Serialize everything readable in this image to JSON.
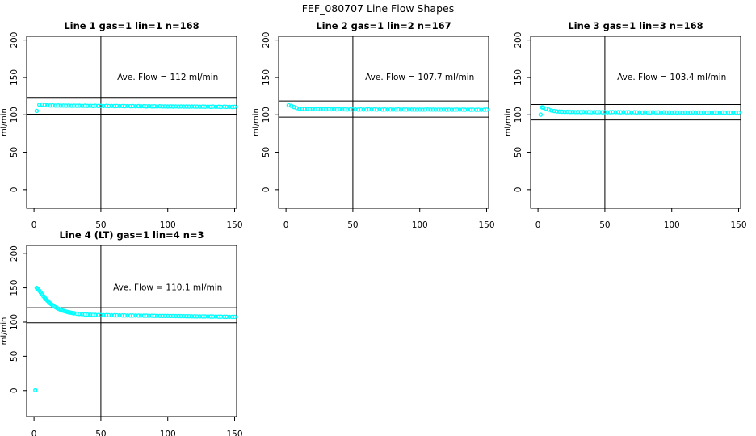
{
  "page_title": "FEF_080707  Line Flow Shapes",
  "colors": {
    "points": "#00FFFF",
    "axis": "#000000",
    "background": "#FFFFFF",
    "text": "#000000"
  },
  "axis_shared": {
    "x_ticks": [
      0,
      50,
      100,
      150
    ],
    "y_ticks": [
      0,
      50,
      100,
      150,
      200
    ],
    "ylabel": "ml/min",
    "xlim": [
      -5.5,
      151.5
    ],
    "grid": false
  },
  "marker": {
    "shape": "open-circle",
    "color": "#00FFFF"
  },
  "chart_data": [
    {
      "type": "scatter",
      "title": "Line 1 gas=1 lin=1 n=168",
      "annotation": "Ave. Flow =  112  ml/min",
      "ave_flow": 112,
      "annotation_at": [
        100,
        150
      ],
      "ref_lines_h": [
        100.8,
        123.2
      ],
      "ref_line_v": 50,
      "ylim": [
        -25,
        205
      ],
      "points": [
        [
          2,
          105.2
        ],
        [
          4,
          113.4
        ],
        [
          6,
          113.8
        ],
        [
          8,
          113.2
        ],
        [
          10,
          112.8
        ],
        [
          12,
          112.5
        ],
        [
          14,
          112.6
        ],
        [
          16,
          112.3
        ],
        [
          18,
          112.5
        ],
        [
          20,
          112.2
        ],
        [
          22,
          112.4
        ],
        [
          24,
          112.1
        ],
        [
          26,
          112.3
        ],
        [
          28,
          112.0
        ],
        [
          30,
          112.2
        ],
        [
          32,
          112.0
        ],
        [
          34,
          112.1
        ],
        [
          36,
          111.9
        ],
        [
          38,
          112.1
        ],
        [
          40,
          111.9
        ],
        [
          42,
          112.0
        ],
        [
          44,
          111.8
        ],
        [
          46,
          112.0
        ],
        [
          48,
          111.8
        ],
        [
          50,
          111.9
        ],
        [
          52,
          111.7
        ],
        [
          54,
          111.9
        ],
        [
          56,
          111.7
        ],
        [
          58,
          111.8
        ],
        [
          60,
          111.6
        ],
        [
          62,
          111.8
        ],
        [
          64,
          111.6
        ],
        [
          66,
          111.7
        ],
        [
          68,
          111.5
        ],
        [
          70,
          111.7
        ],
        [
          72,
          111.5
        ],
        [
          74,
          111.6
        ],
        [
          76,
          111.4
        ],
        [
          78,
          111.6
        ],
        [
          80,
          111.4
        ],
        [
          82,
          111.5
        ],
        [
          84,
          111.3
        ],
        [
          86,
          111.5
        ],
        [
          88,
          111.3
        ],
        [
          90,
          111.4
        ],
        [
          92,
          111.2
        ],
        [
          94,
          111.4
        ],
        [
          96,
          111.2
        ],
        [
          98,
          111.3
        ],
        [
          100,
          111.1
        ],
        [
          102,
          111.3
        ],
        [
          104,
          111.1
        ],
        [
          106,
          111.2
        ],
        [
          108,
          111.0
        ],
        [
          110,
          111.2
        ],
        [
          112,
          111.0
        ],
        [
          114,
          111.1
        ],
        [
          116,
          110.9
        ],
        [
          118,
          111.1
        ],
        [
          120,
          110.9
        ],
        [
          122,
          111.0
        ],
        [
          124,
          110.8
        ],
        [
          126,
          111.0
        ],
        [
          128,
          110.8
        ],
        [
          130,
          110.9
        ],
        [
          132,
          110.7
        ],
        [
          134,
          110.9
        ],
        [
          136,
          110.7
        ],
        [
          138,
          110.8
        ],
        [
          140,
          110.6
        ],
        [
          142,
          110.8
        ],
        [
          144,
          110.6
        ],
        [
          146,
          110.7
        ],
        [
          148,
          110.5
        ],
        [
          150,
          110.7
        ]
      ]
    },
    {
      "type": "scatter",
      "title": "Line 2 gas=1 lin=2 n=167",
      "annotation": "Ave. Flow =  107.7  ml/min",
      "ave_flow": 107.7,
      "annotation_at": [
        100,
        150
      ],
      "ref_lines_h": [
        96.9,
        118.5
      ],
      "ref_line_v": 50,
      "ylim": [
        -25,
        205
      ],
      "points": [
        [
          2,
          112.8
        ],
        [
          4,
          112.0
        ],
        [
          6,
          110.3
        ],
        [
          8,
          109.0
        ],
        [
          10,
          108.2
        ],
        [
          12,
          107.9
        ],
        [
          14,
          107.7
        ],
        [
          16,
          107.8
        ],
        [
          18,
          107.5
        ],
        [
          20,
          107.7
        ],
        [
          22,
          107.4
        ],
        [
          24,
          107.6
        ],
        [
          26,
          107.4
        ],
        [
          28,
          107.5
        ],
        [
          30,
          107.3
        ],
        [
          32,
          107.5
        ],
        [
          34,
          107.3
        ],
        [
          36,
          107.4
        ],
        [
          38,
          107.2
        ],
        [
          40,
          107.4
        ],
        [
          42,
          107.2
        ],
        [
          44,
          107.3
        ],
        [
          46,
          107.1
        ],
        [
          48,
          107.3
        ],
        [
          50,
          107.1
        ],
        [
          52,
          107.2
        ],
        [
          54,
          107.0
        ],
        [
          56,
          107.2
        ],
        [
          58,
          107.0
        ],
        [
          60,
          107.1
        ],
        [
          62,
          107.3
        ],
        [
          64,
          107.1
        ],
        [
          66,
          107.2
        ],
        [
          68,
          107.0
        ],
        [
          70,
          107.2
        ],
        [
          72,
          107.0
        ],
        [
          74,
          107.1
        ],
        [
          76,
          106.9
        ],
        [
          78,
          107.1
        ],
        [
          80,
          106.9
        ],
        [
          82,
          107.0
        ],
        [
          84,
          107.2
        ],
        [
          86,
          107.0
        ],
        [
          88,
          107.1
        ],
        [
          90,
          106.9
        ],
        [
          92,
          107.1
        ],
        [
          94,
          106.9
        ],
        [
          96,
          107.0
        ],
        [
          98,
          106.8
        ],
        [
          100,
          107.0
        ],
        [
          102,
          106.8
        ],
        [
          104,
          106.9
        ],
        [
          106,
          107.1
        ],
        [
          108,
          106.9
        ],
        [
          110,
          107.0
        ],
        [
          112,
          106.8
        ],
        [
          114,
          107.0
        ],
        [
          116,
          106.8
        ],
        [
          118,
          106.9
        ],
        [
          120,
          106.7
        ],
        [
          122,
          106.9
        ],
        [
          124,
          106.7
        ],
        [
          126,
          106.8
        ],
        [
          128,
          107.0
        ],
        [
          130,
          106.8
        ],
        [
          132,
          106.9
        ],
        [
          134,
          106.7
        ],
        [
          136,
          106.9
        ],
        [
          138,
          106.7
        ],
        [
          140,
          106.8
        ],
        [
          142,
          106.6
        ],
        [
          144,
          106.8
        ],
        [
          146,
          106.6
        ],
        [
          148,
          106.7
        ],
        [
          150,
          106.9
        ]
      ]
    },
    {
      "type": "scatter",
      "title": "Line 3 gas=1 lin=3 n=168",
      "annotation": "Ave. Flow =  103.4  ml/min",
      "ave_flow": 103.4,
      "annotation_at": [
        100,
        150
      ],
      "ref_lines_h": [
        93.1,
        113.7
      ],
      "ref_line_v": 50,
      "ylim": [
        -25,
        205
      ],
      "points": [
        [
          2,
          100.2
        ],
        [
          3,
          110.0
        ],
        [
          4,
          109.6
        ],
        [
          6,
          108.3
        ],
        [
          8,
          106.9
        ],
        [
          10,
          105.8
        ],
        [
          12,
          105.0
        ],
        [
          14,
          104.5
        ],
        [
          16,
          104.2
        ],
        [
          18,
          104.0
        ],
        [
          20,
          103.8
        ],
        [
          22,
          103.9
        ],
        [
          24,
          103.7
        ],
        [
          26,
          103.8
        ],
        [
          28,
          103.6
        ],
        [
          30,
          103.7
        ],
        [
          32,
          103.5
        ],
        [
          34,
          103.7
        ],
        [
          36,
          103.5
        ],
        [
          38,
          103.6
        ],
        [
          40,
          103.4
        ],
        [
          42,
          103.6
        ],
        [
          44,
          103.4
        ],
        [
          46,
          103.5
        ],
        [
          48,
          103.3
        ],
        [
          50,
          103.5
        ],
        [
          52,
          103.3
        ],
        [
          54,
          103.4
        ],
        [
          56,
          103.6
        ],
        [
          58,
          103.4
        ],
        [
          60,
          103.5
        ],
        [
          62,
          103.3
        ],
        [
          64,
          103.5
        ],
        [
          66,
          103.3
        ],
        [
          68,
          103.4
        ],
        [
          70,
          103.2
        ],
        [
          72,
          103.4
        ],
        [
          74,
          103.2
        ],
        [
          76,
          103.3
        ],
        [
          78,
          103.1
        ],
        [
          80,
          103.3
        ],
        [
          82,
          103.1
        ],
        [
          84,
          103.2
        ],
        [
          86,
          103.4
        ],
        [
          88,
          103.2
        ],
        [
          90,
          103.3
        ],
        [
          92,
          103.1
        ],
        [
          94,
          103.3
        ],
        [
          96,
          103.1
        ],
        [
          98,
          103.2
        ],
        [
          100,
          103.0
        ],
        [
          102,
          103.2
        ],
        [
          104,
          103.0
        ],
        [
          106,
          103.1
        ],
        [
          108,
          102.9
        ],
        [
          110,
          103.1
        ],
        [
          112,
          102.9
        ],
        [
          114,
          103.0
        ],
        [
          116,
          103.2
        ],
        [
          118,
          103.0
        ],
        [
          120,
          103.1
        ],
        [
          122,
          102.9
        ],
        [
          124,
          103.1
        ],
        [
          126,
          102.9
        ],
        [
          128,
          103.0
        ],
        [
          130,
          102.8
        ],
        [
          132,
          103.0
        ],
        [
          134,
          102.8
        ],
        [
          136,
          102.9
        ],
        [
          138,
          103.1
        ],
        [
          140,
          102.9
        ],
        [
          142,
          103.0
        ],
        [
          144,
          102.8
        ],
        [
          146,
          103.0
        ],
        [
          148,
          102.8
        ],
        [
          150,
          102.9
        ]
      ]
    },
    {
      "type": "scatter",
      "title": "Line 4 (LT) gas=1 lin=4 n=3",
      "annotation": "Ave. Flow =  110.1  ml/min",
      "ave_flow": 110.1,
      "annotation_at": [
        100,
        150
      ],
      "ref_lines_h": [
        99.1,
        121.1
      ],
      "ref_line_v": 50,
      "ylim": [
        -38,
        212
      ],
      "points": [
        [
          1,
          0.5
        ],
        [
          2,
          150.0
        ],
        [
          3,
          148.2
        ],
        [
          4,
          145.8
        ],
        [
          5,
          143.2
        ],
        [
          6,
          140.6
        ],
        [
          7,
          138.0
        ],
        [
          8,
          135.6
        ],
        [
          9,
          133.4
        ],
        [
          10,
          131.3
        ],
        [
          11,
          129.4
        ],
        [
          12,
          127.6
        ],
        [
          13,
          126.0
        ],
        [
          14,
          124.5
        ],
        [
          15,
          123.1
        ],
        [
          16,
          121.9
        ],
        [
          17,
          120.8
        ],
        [
          18,
          119.8
        ],
        [
          19,
          118.9
        ],
        [
          20,
          118.0
        ],
        [
          21,
          117.3
        ],
        [
          22,
          116.6
        ],
        [
          23,
          116.0
        ],
        [
          24,
          115.4
        ],
        [
          25,
          114.9
        ],
        [
          26,
          114.4
        ],
        [
          27,
          114.0
        ],
        [
          28,
          113.6
        ],
        [
          29,
          113.3
        ],
        [
          30,
          112.9
        ],
        [
          32,
          112.4
        ],
        [
          34,
          112.0
        ],
        [
          36,
          111.6
        ],
        [
          38,
          111.3
        ],
        [
          40,
          111.1
        ],
        [
          42,
          110.9
        ],
        [
          44,
          110.7
        ],
        [
          46,
          110.6
        ],
        [
          48,
          110.4
        ],
        [
          50,
          110.3
        ],
        [
          52,
          110.2
        ],
        [
          54,
          110.2
        ],
        [
          56,
          110.1
        ],
        [
          58,
          110.0
        ],
        [
          60,
          110.0
        ],
        [
          62,
          109.9
        ],
        [
          64,
          109.9
        ],
        [
          66,
          109.8
        ],
        [
          68,
          109.8
        ],
        [
          70,
          109.7
        ],
        [
          72,
          109.7
        ],
        [
          74,
          109.6
        ],
        [
          76,
          109.6
        ],
        [
          78,
          109.5
        ],
        [
          80,
          109.5
        ],
        [
          82,
          109.4
        ],
        [
          84,
          109.4
        ],
        [
          86,
          109.3
        ],
        [
          88,
          109.3
        ],
        [
          90,
          109.2
        ],
        [
          92,
          109.2
        ],
        [
          94,
          109.1
        ],
        [
          96,
          109.1
        ],
        [
          98,
          109.0
        ],
        [
          100,
          109.0
        ],
        [
          102,
          108.9
        ],
        [
          104,
          108.9
        ],
        [
          106,
          108.8
        ],
        [
          108,
          108.8
        ],
        [
          110,
          108.7
        ],
        [
          112,
          108.7
        ],
        [
          114,
          108.6
        ],
        [
          116,
          108.6
        ],
        [
          118,
          108.5
        ],
        [
          120,
          108.5
        ],
        [
          122,
          108.4
        ],
        [
          124,
          108.4
        ],
        [
          126,
          108.3
        ],
        [
          128,
          108.3
        ],
        [
          130,
          108.2
        ],
        [
          132,
          108.2
        ],
        [
          134,
          108.1
        ],
        [
          136,
          108.1
        ],
        [
          138,
          108.0
        ],
        [
          140,
          108.0
        ],
        [
          142,
          107.9
        ],
        [
          144,
          107.9
        ],
        [
          146,
          107.8
        ],
        [
          148,
          107.8
        ],
        [
          150,
          107.7
        ]
      ]
    }
  ]
}
